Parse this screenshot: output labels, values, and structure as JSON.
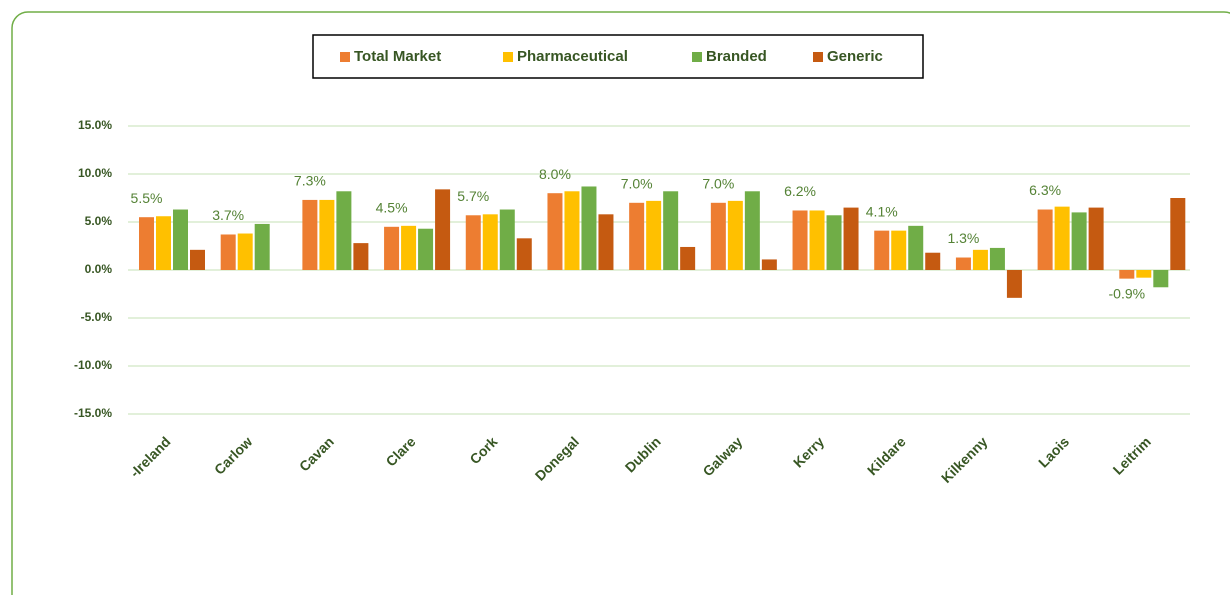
{
  "chart_data": {
    "type": "bar",
    "categories": [
      "-Ireland",
      "Carlow",
      "Cavan",
      "Clare",
      "Cork",
      "Donegal",
      "Dublin",
      "Galway",
      "Kerry",
      "Kildare",
      "Kilkenny",
      "Laois",
      "Leitrim"
    ],
    "series": [
      {
        "name": "Total Market",
        "color": "#ed7d31",
        "values": [
          5.5,
          3.7,
          7.3,
          4.5,
          5.7,
          8.0,
          7.0,
          7.0,
          6.2,
          4.1,
          1.3,
          6.3,
          -0.9
        ],
        "value_labels": [
          "5.5%",
          "3.7%",
          "7.3%",
          "4.5%",
          "5.7%",
          "8.0%",
          "7.0%",
          "7.0%",
          "6.2%",
          "4.1%",
          "1.3%",
          "6.3%",
          "-0.9%"
        ]
      },
      {
        "name": "Pharmaceutical",
        "color": "#ffc000",
        "values": [
          5.6,
          3.8,
          7.3,
          4.6,
          5.8,
          8.2,
          7.2,
          7.2,
          6.2,
          4.1,
          2.1,
          6.6,
          -0.8
        ]
      },
      {
        "name": "Branded",
        "color": "#70ad47",
        "values": [
          6.3,
          4.8,
          8.2,
          4.3,
          6.3,
          8.7,
          8.2,
          8.2,
          5.7,
          4.6,
          2.3,
          6.0,
          -1.8
        ]
      },
      {
        "name": "Generic",
        "color": "#c55a11",
        "values": [
          2.1,
          0,
          2.8,
          8.4,
          3.3,
          5.8,
          2.4,
          1.1,
          6.5,
          1.8,
          -2.9,
          6.5,
          7.5
        ]
      }
    ],
    "ylim": [
      -15,
      15
    ],
    "yticks": [
      {
        "value": -15,
        "label": "-15.0%"
      },
      {
        "value": -10,
        "label": "-10.0%"
      },
      {
        "value": -5,
        "label": "-5.0%"
      },
      {
        "value": 0,
        "label": "0.0%"
      },
      {
        "value": 5,
        "label": "5.0%"
      },
      {
        "value": 10,
        "label": "10.0%"
      },
      {
        "value": 15,
        "label": "15.0%"
      }
    ],
    "grid": true,
    "legend": "top"
  }
}
